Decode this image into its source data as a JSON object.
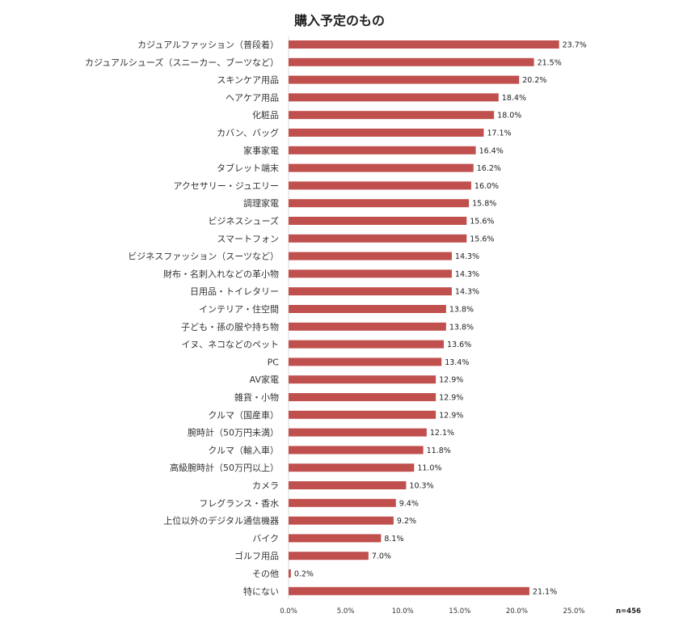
{
  "chart_data": {
    "type": "bar",
    "orientation": "horizontal",
    "title": "購入予定のもの",
    "xlabel": "",
    "ylabel": "",
    "xlim": [
      0,
      25
    ],
    "x_ticks": [
      "0.0%",
      "5.0%",
      "10.0%",
      "15.0%",
      "20.0%",
      "25.0%"
    ],
    "x_tick_values": [
      0,
      5,
      10,
      15,
      20,
      25
    ],
    "grid": false,
    "bar_color": "#c0504d",
    "note": "n=456",
    "categories": [
      "カジュアルファッション（普段着）",
      "カジュアルシューズ（スニーカー、ブーツなど）",
      "スキンケア用品",
      "ヘアケア用品",
      "化粧品",
      "カバン、バッグ",
      "家事家電",
      "タブレット端末",
      "アクセサリー・ジュエリー",
      "調理家電",
      "ビジネスシューズ",
      "スマートフォン",
      "ビジネスファッション（スーツなど）",
      "財布・名刺入れなどの革小物",
      "日用品・トイレタリー",
      "インテリア・住空間",
      "子ども・孫の服や持ち物",
      "イヌ、ネコなどのペット",
      "PC",
      "AV家電",
      "雑貨・小物",
      "クルマ（国産車）",
      "腕時計（50万円未満）",
      "クルマ（輸入車）",
      "高級腕時計（50万円以上）",
      "カメラ",
      "フレグランス・香水",
      "上位以外のデジタル通信機器",
      "バイク",
      "ゴルフ用品",
      "その他",
      "特にない"
    ],
    "values": [
      23.7,
      21.5,
      20.2,
      18.4,
      18.0,
      17.1,
      16.4,
      16.2,
      16.0,
      15.8,
      15.6,
      15.6,
      14.3,
      14.3,
      14.3,
      13.8,
      13.8,
      13.6,
      13.4,
      12.9,
      12.9,
      12.9,
      12.1,
      11.8,
      11.0,
      10.3,
      9.4,
      9.2,
      8.1,
      7.0,
      0.2,
      21.1
    ],
    "value_labels": [
      "23.7%",
      "21.5%",
      "20.2%",
      "18.4%",
      "18.0%",
      "17.1%",
      "16.4%",
      "16.2%",
      "16.0%",
      "15.8%",
      "15.6%",
      "15.6%",
      "14.3%",
      "14.3%",
      "14.3%",
      "13.8%",
      "13.8%",
      "13.6%",
      "13.4%",
      "12.9%",
      "12.9%",
      "12.9%",
      "12.1%",
      "11.8%",
      "11.0%",
      "10.3%",
      "9.4%",
      "9.2%",
      "8.1%",
      "7.0%",
      "0.2%",
      "21.1%"
    ]
  }
}
